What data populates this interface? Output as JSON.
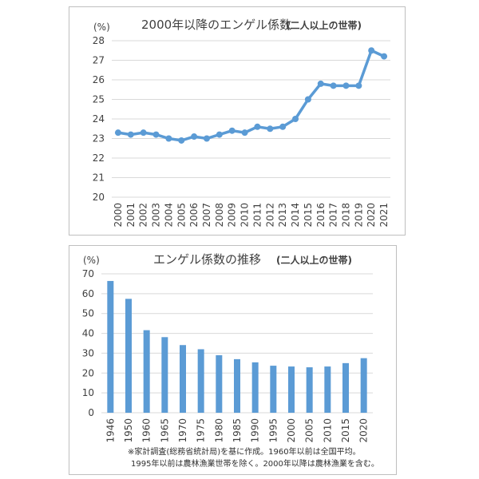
{
  "chart_data": [
    {
      "type": "line",
      "title": "2000年以降のエンゲル係数",
      "subtitle": "(二人以上の世帯)",
      "unit_label": "(%)",
      "categories": [
        "2000",
        "2001",
        "2002",
        "2003",
        "2004",
        "2005",
        "2006",
        "2007",
        "2008",
        "2009",
        "2010",
        "2011",
        "2012",
        "2013",
        "2014",
        "2015",
        "2016",
        "2017",
        "2018",
        "2019",
        "2020",
        "2021"
      ],
      "series": [
        {
          "values": [
            23.3,
            23.2,
            23.3,
            23.2,
            23.0,
            22.9,
            23.1,
            23.0,
            23.2,
            23.4,
            23.3,
            23.6,
            23.5,
            23.6,
            24.0,
            25.0,
            25.8,
            25.7,
            25.7,
            25.7,
            27.5,
            27.2
          ]
        }
      ],
      "ylim": [
        20,
        28
      ],
      "yticks": [
        20,
        21,
        22,
        23,
        24,
        25,
        26,
        27,
        28
      ],
      "grid": true,
      "color": "#5b9bd5"
    },
    {
      "type": "bar",
      "title": "エンゲル係数の推移",
      "subtitle": "(二人以上の世帯)",
      "unit_label": "(%)",
      "categories": [
        "1946",
        "1950",
        "1960",
        "1965",
        "1970",
        "1975",
        "1980",
        "1985",
        "1990",
        "1995",
        "2000",
        "2005",
        "2010",
        "2015",
        "2020"
      ],
      "series": [
        {
          "values": [
            66.4,
            57.4,
            41.6,
            38.1,
            34.1,
            32.0,
            29.0,
            27.0,
            25.4,
            23.7,
            23.3,
            22.9,
            23.3,
            25.0,
            27.5
          ]
        }
      ],
      "ylim": [
        0,
        70
      ],
      "yticks": [
        0,
        10,
        20,
        30,
        40,
        50,
        60,
        70
      ],
      "grid": true,
      "color": "#5b9bd5"
    }
  ],
  "footnote": {
    "line1": "※家計調査(総務省統計局)を基に作成。1960年以前は全国平均。",
    "line2": "1995年以前は農林漁業世帯を除く。2000年以降は農林漁業を含む。"
  }
}
